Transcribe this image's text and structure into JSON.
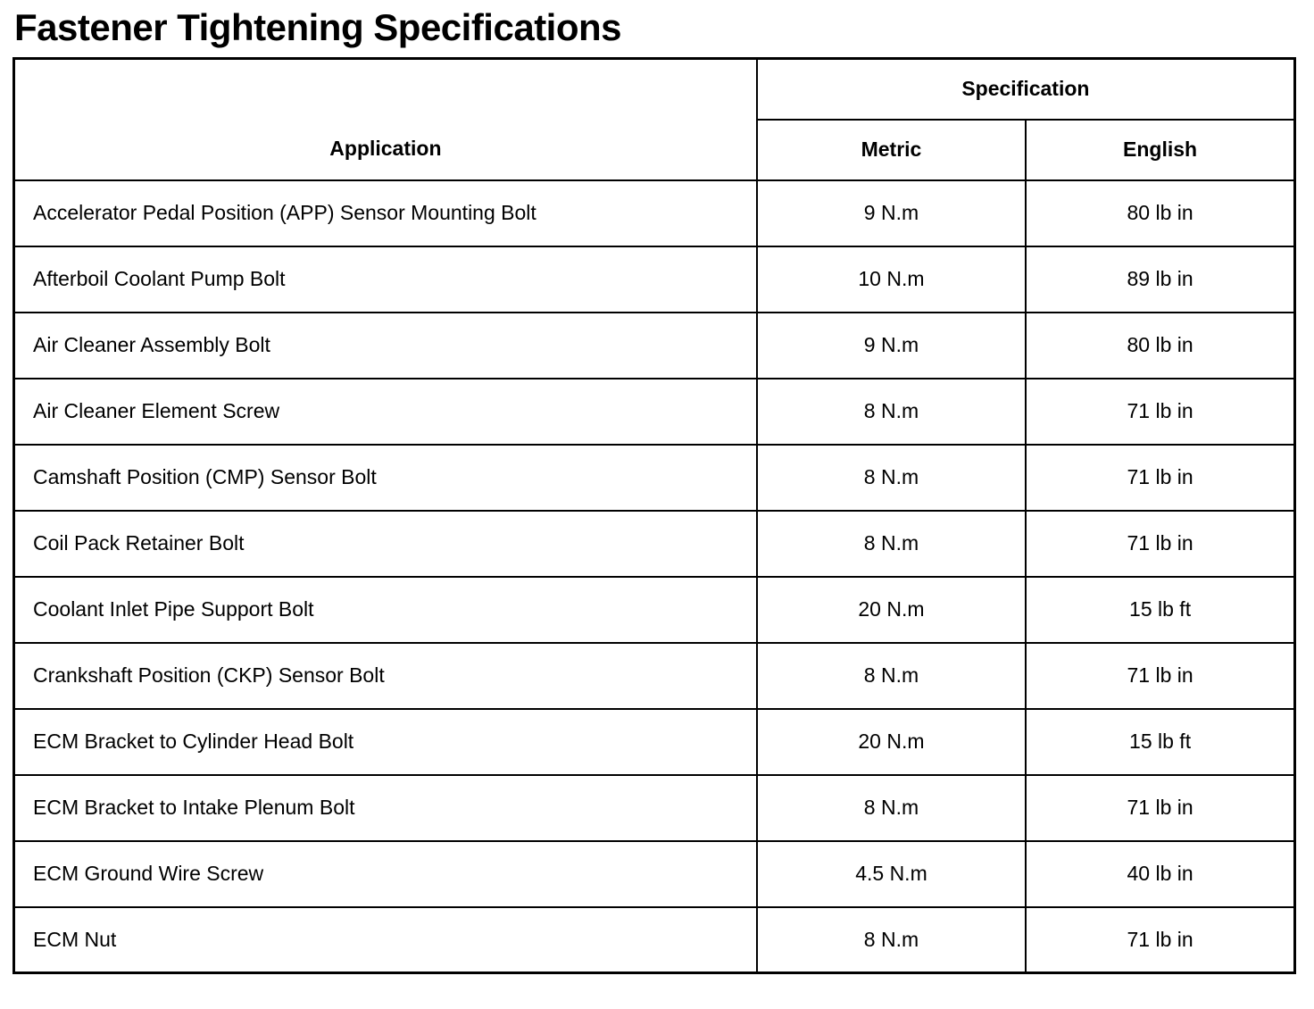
{
  "page_title": "Fastener Tightening Specifications",
  "table": {
    "headers": {
      "application": "Application",
      "specification": "Specification",
      "metric": "Metric",
      "english": "English"
    },
    "rows": [
      {
        "application": "Accelerator Pedal Position (APP) Sensor Mounting Bolt",
        "metric": "9 N.m",
        "english": "80 lb in"
      },
      {
        "application": "Afterboil Coolant Pump Bolt",
        "metric": "10 N.m",
        "english": "89 lb in"
      },
      {
        "application": "Air Cleaner Assembly Bolt",
        "metric": "9 N.m",
        "english": "80 lb in"
      },
      {
        "application": "Air Cleaner Element Screw",
        "metric": "8 N.m",
        "english": "71 lb in"
      },
      {
        "application": "Camshaft Position (CMP) Sensor Bolt",
        "metric": "8 N.m",
        "english": "71 lb in"
      },
      {
        "application": "Coil Pack Retainer Bolt",
        "metric": "8 N.m",
        "english": "71 lb in"
      },
      {
        "application": "Coolant Inlet Pipe Support Bolt",
        "metric": "20 N.m",
        "english": "15 lb ft"
      },
      {
        "application": "Crankshaft Position (CKP) Sensor Bolt",
        "metric": "8 N.m",
        "english": "71 lb in"
      },
      {
        "application": "ECM Bracket to Cylinder Head Bolt",
        "metric": "20 N.m",
        "english": "15 lb ft"
      },
      {
        "application": "ECM Bracket to Intake Plenum Bolt",
        "metric": "8 N.m",
        "english": "71 lb in"
      },
      {
        "application": "ECM Ground Wire Screw",
        "metric": "4.5 N.m",
        "english": "40 lb in"
      },
      {
        "application": "ECM Nut",
        "metric": "8 N.m",
        "english": "71 lb in"
      }
    ]
  },
  "colors": {
    "text": "#000000",
    "background": "#ffffff",
    "border": "#000000"
  }
}
